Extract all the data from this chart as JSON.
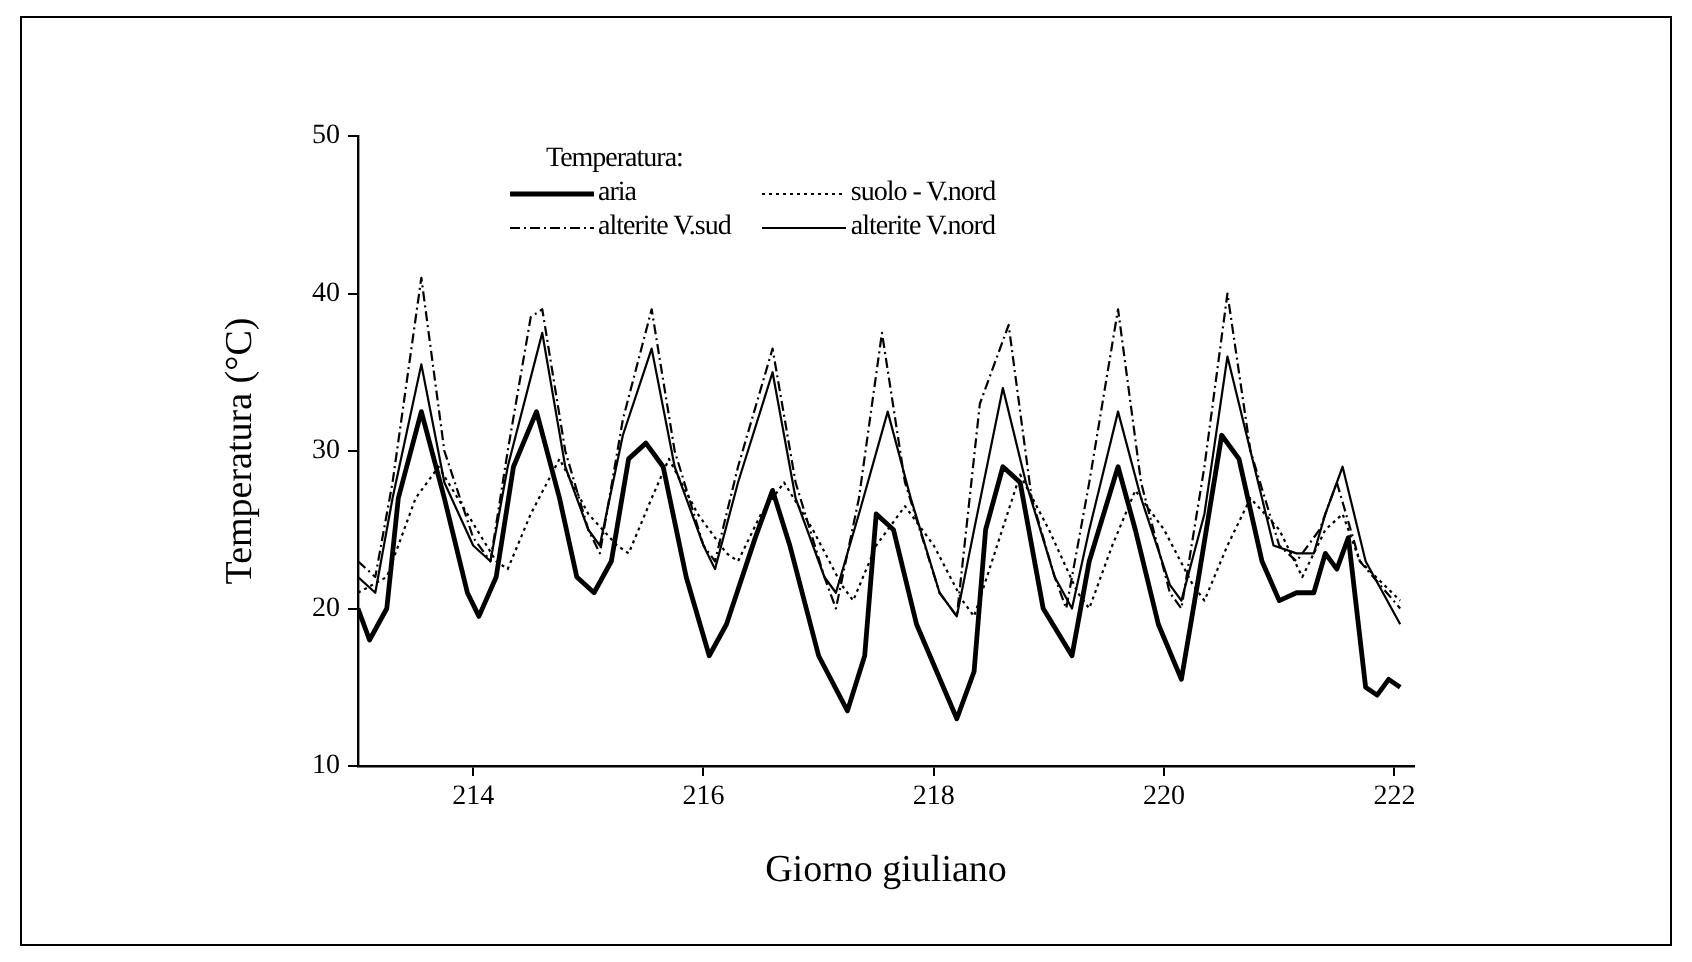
{
  "chart_data": {
    "type": "line",
    "xlabel": "Giorno giuliano",
    "ylabel": "Temperatura (°C)",
    "legend_title": "Temperatura:",
    "legend": "top",
    "grid": false,
    "marker": "none",
    "xlim": [
      213,
      222.17
    ],
    "xticks": [
      214,
      216,
      218,
      220,
      222
    ],
    "ylim": [
      10,
      50
    ],
    "yticks": [
      10,
      20,
      30,
      40,
      50
    ],
    "series": [
      {
        "name": "aria",
        "color": "#000000",
        "line_style": "solid",
        "x": [
          213,
          213.1,
          213.25,
          213.35,
          213.55,
          213.75,
          213.95,
          214.05,
          214.2,
          214.35,
          214.55,
          214.75,
          214.9,
          215.05,
          215.2,
          215.35,
          215.5,
          215.65,
          215.85,
          216.05,
          216.2,
          216.45,
          216.6,
          216.75,
          217.0,
          217.25,
          217.4,
          217.5,
          217.65,
          217.85,
          218.2,
          218.35,
          218.45,
          218.6,
          218.75,
          218.95,
          219.2,
          219.35,
          219.6,
          219.75,
          219.95,
          220.15,
          220.3,
          220.5,
          220.65,
          220.85,
          221.0,
          221.15,
          221.3,
          221.4,
          221.5,
          221.6,
          221.75,
          221.85,
          221.95,
          222.05
        ],
        "values": [
          20,
          18,
          20,
          27,
          32.5,
          27,
          21,
          19.5,
          22,
          29,
          32.5,
          27,
          22,
          21,
          23,
          29.5,
          30.5,
          29,
          22,
          17,
          19,
          24.5,
          27.5,
          24,
          17,
          13.5,
          17,
          26,
          25,
          19,
          13,
          16,
          25,
          29,
          28,
          20,
          17,
          23,
          29,
          25,
          19,
          15.5,
          22,
          31,
          29.5,
          23,
          20.5,
          21,
          21,
          23.5,
          22.5,
          24.5,
          15,
          14.5,
          15.5,
          15
        ]
      },
      {
        "name": "suolo - V.nord",
        "color": "#000000",
        "line_style": "dotted",
        "x": [
          213,
          213.25,
          213.5,
          213.7,
          213.95,
          214.2,
          214.3,
          214.5,
          214.75,
          215.0,
          215.25,
          215.35,
          215.55,
          215.7,
          215.95,
          216.2,
          216.3,
          216.5,
          216.7,
          216.95,
          217.2,
          217.3,
          217.5,
          217.75,
          218.0,
          218.25,
          218.35,
          218.55,
          218.75,
          219.0,
          219.25,
          219.35,
          219.55,
          219.75,
          220.0,
          220.25,
          220.35,
          220.55,
          220.75,
          221.0,
          221.2,
          221.4,
          221.55,
          221.7,
          222.05
        ],
        "values": [
          21,
          22,
          27,
          29,
          26,
          23,
          22.5,
          26,
          29.5,
          26,
          24,
          23.5,
          27,
          29.5,
          26,
          23.5,
          23,
          26,
          28,
          25,
          21.5,
          20.5,
          24,
          26.5,
          24,
          20.5,
          19.5,
          24,
          28.5,
          25,
          21,
          20,
          24,
          27.5,
          25,
          21.5,
          20.5,
          24,
          27,
          25,
          22,
          25,
          26,
          23,
          20.5
        ]
      },
      {
        "name": "alterite V.sud",
        "color": "#000000",
        "line_style": "dashed",
        "x": [
          213,
          213.15,
          213.3,
          213.55,
          213.75,
          214.0,
          214.15,
          214.3,
          214.5,
          214.6,
          214.8,
          215.0,
          215.1,
          215.3,
          215.55,
          215.75,
          216.0,
          216.1,
          216.3,
          216.6,
          216.8,
          217.05,
          217.15,
          217.35,
          217.55,
          217.75,
          218.05,
          218.2,
          218.4,
          218.65,
          218.85,
          219.05,
          219.15,
          219.35,
          219.6,
          219.8,
          220.05,
          220.15,
          220.35,
          220.55,
          220.75,
          221.0,
          221.15,
          221.35,
          221.5,
          221.7,
          222.05
        ],
        "values": [
          23,
          22,
          28,
          41,
          30,
          24.5,
          23,
          30,
          38.5,
          39,
          30,
          25,
          23.5,
          32,
          39,
          30,
          24,
          23,
          29,
          36.5,
          28,
          22,
          20,
          27,
          37.5,
          28,
          21,
          19.5,
          33,
          38,
          27,
          22,
          20,
          28,
          39,
          28,
          21,
          20,
          29,
          40,
          30,
          24,
          23,
          25,
          28,
          23,
          20
        ]
      },
      {
        "name": "alterite V.nord",
        "color": "#000000",
        "line_style": "solid",
        "x": [
          213,
          213.15,
          213.3,
          213.55,
          213.75,
          214.0,
          214.15,
          214.3,
          214.6,
          214.8,
          215.0,
          215.1,
          215.3,
          215.55,
          215.75,
          216.0,
          216.1,
          216.3,
          216.6,
          216.8,
          217.05,
          217.15,
          217.35,
          217.6,
          217.8,
          218.05,
          218.2,
          218.35,
          218.6,
          218.8,
          219.05,
          219.2,
          219.35,
          219.6,
          219.8,
          220.05,
          220.15,
          220.35,
          220.55,
          220.75,
          220.95,
          221.15,
          221.3,
          221.4,
          221.55,
          221.75,
          222.05
        ],
        "values": [
          22,
          21,
          27,
          35.5,
          28,
          24,
          23,
          29,
          37.5,
          29,
          25,
          24,
          31,
          36.5,
          29,
          24,
          22.5,
          28,
          35,
          27,
          22,
          21,
          26,
          32.5,
          27,
          21,
          19.5,
          25,
          34,
          28,
          22,
          20,
          25,
          32.5,
          27,
          21.5,
          20.5,
          26,
          36,
          30,
          24,
          23.5,
          23.5,
          26,
          29,
          23,
          19
        ]
      }
    ]
  }
}
